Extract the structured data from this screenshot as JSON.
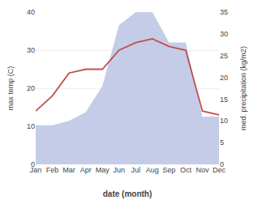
{
  "chart_data": {
    "type": "line",
    "categories": [
      "Jan",
      "Feb",
      "Mar",
      "Apr",
      "May",
      "Jun",
      "Jul",
      "Aug",
      "Sep",
      "Oct",
      "Nov",
      "Dec"
    ],
    "series": [
      {
        "type": "area",
        "color": "#c5cce8",
        "axis": "y2",
        "values": [
          9,
          9,
          10,
          12,
          18,
          32,
          35,
          35,
          28,
          28,
          11,
          11
        ]
      },
      {
        "type": "line",
        "color": "#c0504d",
        "values": [
          14,
          18,
          24,
          25,
          25,
          30,
          32,
          33,
          31,
          30,
          14,
          13
        ]
      }
    ],
    "xlabel": "date (month)",
    "ylabel": "max temp (C)",
    "y2label": "med. precipitation (kg/m2)",
    "ylim": [
      0,
      40
    ],
    "yticks": [
      0,
      10,
      20,
      30,
      40
    ],
    "y2lim": [
      0,
      35
    ],
    "y2ticks": [
      0,
      5,
      10,
      15,
      20,
      25,
      30,
      35
    ],
    "grid": true
  }
}
